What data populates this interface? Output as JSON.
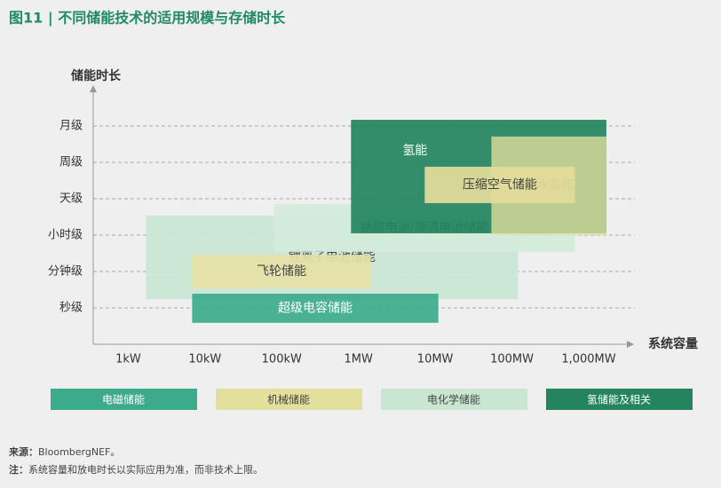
{
  "chart_data": {
    "type": "range",
    "title": "图11 | 不同储能技术的适用规模与存储时长",
    "y_label": "储能时长",
    "x_label": "系统容量",
    "x_scale": "log",
    "xlim": [
      0.35,
      3500000
    ],
    "xticks": [
      {
        "value": 1,
        "label": "1kW"
      },
      {
        "value": 10,
        "label": "10kW"
      },
      {
        "value": 100,
        "label": "100kW"
      },
      {
        "value": 1000,
        "label": "1MW"
      },
      {
        "value": 10000,
        "label": "10MW"
      },
      {
        "value": 100000,
        "label": "100MW"
      },
      {
        "value": 1000000,
        "label": "1,000MW"
      }
    ],
    "ylim": [
      0,
      7
    ],
    "yticks": [
      {
        "value": 1,
        "label": "秒级"
      },
      {
        "value": 2,
        "label": "分钟级"
      },
      {
        "value": 3,
        "label": "小时级"
      },
      {
        "value": 4,
        "label": "天级"
      },
      {
        "value": 5,
        "label": "周级"
      },
      {
        "value": 6,
        "label": "月级"
      }
    ],
    "grid": true,
    "series": [
      {
        "name": "锂离子电池储能",
        "color": "#c9e6d2",
        "x": [
          1.7,
          120000
        ],
        "y": [
          1.24,
          3.54
        ]
      },
      {
        "name": "钠硫电池/液流电池储能",
        "color": "#d2ebdb",
        "x": [
          80,
          660000
        ],
        "y": [
          2.54,
          3.85
        ]
      },
      {
        "name": "氢能",
        "color": "#23845f",
        "x": [
          800,
          1700000
        ],
        "y": [
          3.05,
          6.17
        ]
      },
      {
        "name": "抽水蓄能",
        "color": "#e3df9c",
        "x": [
          54000,
          1700000
        ],
        "y": [
          3.0,
          5.71
        ]
      },
      {
        "name": "压缩空气储能",
        "color": "#e4dc9b",
        "x": [
          7300,
          660000
        ],
        "y": [
          3.88,
          4.88
        ]
      },
      {
        "name": "飞轮储能",
        "color": "#e6e2a6",
        "x": [
          6.8,
          1450
        ],
        "y": [
          1.54,
          2.46
        ]
      },
      {
        "name": "超级电容储能",
        "color": "#3dab8b",
        "x": [
          6.8,
          11000
        ],
        "y": [
          0.59,
          1.39
        ]
      }
    ],
    "legend": [
      {
        "name": "电磁储能",
        "color": "#3dab8b"
      },
      {
        "name": "机械储能",
        "color": "#e3df9c"
      },
      {
        "name": "电化学储能",
        "color": "#c9e6d2"
      },
      {
        "name": "氢储能及相关",
        "color": "#23845f"
      }
    ]
  },
  "notes": [
    {
      "label": "来源：",
      "text": "BloombergNEF。"
    },
    {
      "label": "注：",
      "text": "系统容量和放电时长以实际应用为准，而非技术上限。"
    }
  ]
}
